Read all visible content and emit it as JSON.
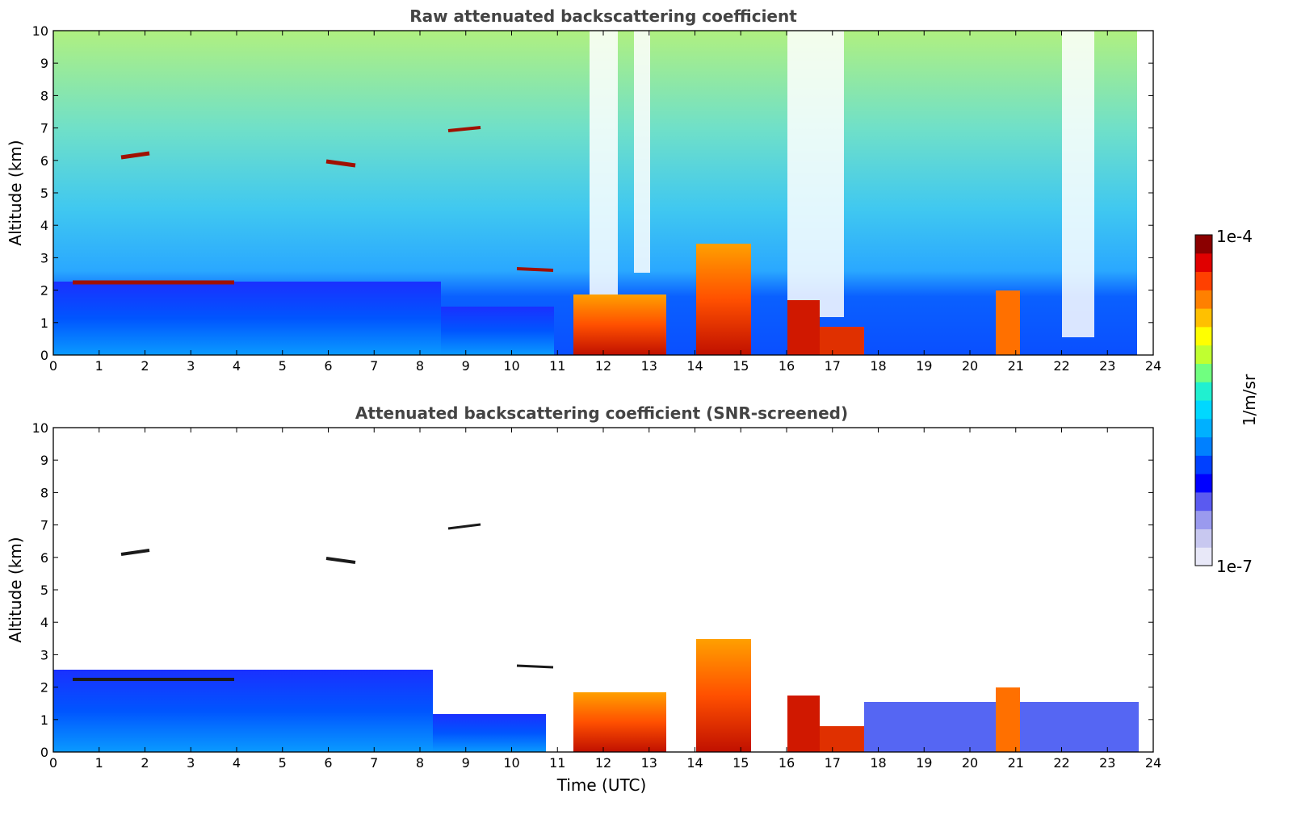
{
  "colorbar": {
    "max_label": "1e-4",
    "min_label": "1e-7",
    "unit_label": "1/m/sr",
    "colors": [
      "#e8e8f8",
      "#c8c8f0",
      "#9a9aee",
      "#5a5af0",
      "#0000ff",
      "#0040ff",
      "#0080ff",
      "#00b0ff",
      "#00d8ff",
      "#20f0d0",
      "#70ff80",
      "#c0ff30",
      "#ffff00",
      "#ffc000",
      "#ff8000",
      "#ff4000",
      "#e00000",
      "#8b0000"
    ]
  },
  "chart_data": [
    {
      "type": "heatmap",
      "title": "Raw attenuated backscattering coefficient",
      "xlabel": "",
      "ylabel": "Altitude (km)",
      "xlim": [
        0,
        24
      ],
      "ylim": [
        0,
        10
      ],
      "xticks": [
        "0",
        "1",
        "2",
        "3",
        "4",
        "5",
        "6",
        "7",
        "8",
        "9",
        "10",
        "11",
        "12",
        "13",
        "14",
        "15",
        "16",
        "17",
        "18",
        "19",
        "20",
        "21",
        "22",
        "23",
        "24"
      ],
      "yticks": [
        "0",
        "1",
        "2",
        "3",
        "4",
        "5",
        "6",
        "7",
        "8",
        "9",
        "10"
      ],
      "data_extent_x": [
        0,
        23.7
      ],
      "colorscale": "jet",
      "scale": "log",
      "vmin": 1e-07,
      "vmax": 0.0001
    },
    {
      "type": "heatmap",
      "title": "Attenuated backscattering coefficient (SNR-screened)",
      "xlabel": "Time (UTC)",
      "ylabel": "Altitude (km)",
      "xlim": [
        0,
        24
      ],
      "ylim": [
        0,
        10
      ],
      "xticks": [
        "0",
        "1",
        "2",
        "3",
        "4",
        "5",
        "6",
        "7",
        "8",
        "9",
        "10",
        "11",
        "12",
        "13",
        "14",
        "15",
        "16",
        "17",
        "18",
        "19",
        "20",
        "21",
        "22",
        "23",
        "24"
      ],
      "yticks": [
        "0",
        "1",
        "2",
        "3",
        "4",
        "5",
        "6",
        "7",
        "8",
        "9",
        "10"
      ],
      "data_extent_x": [
        0,
        23.7
      ],
      "colorscale": "jet",
      "scale": "log",
      "vmin": 1e-07,
      "vmax": 0.0001
    }
  ]
}
